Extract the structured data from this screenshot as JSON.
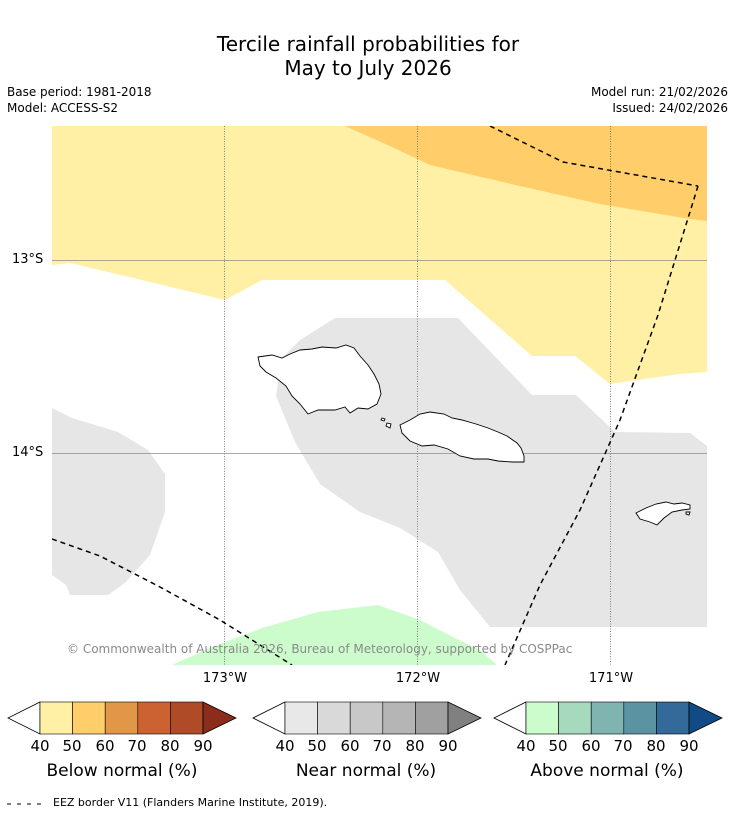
{
  "title": {
    "line1": "Tercile rainfall probabilities for",
    "line2": "May to July 2026"
  },
  "meta": {
    "base_period": "Base period: 1981-2018",
    "model": "Model: ACCESS-S2",
    "model_run": "Model run: 21/02/2026",
    "issued": "Issued: 24/02/2026"
  },
  "map": {
    "copyright": "© Commonwealth of Australia 2026, Bureau of Meteorology, supported by COSPPac",
    "longitude_labels": [
      "173°W",
      "172°W",
      "171°W"
    ],
    "latitude_labels": [
      "13°S",
      "14°S"
    ]
  },
  "colorbars": {
    "below": {
      "title": "Below normal (%)",
      "colors": [
        "#fff0a6",
        "#ffcd6a",
        "#e29648",
        "#cc6131",
        "#b04b28",
        "#8b2d1a"
      ],
      "ticks": [
        "40",
        "50",
        "60",
        "70",
        "80",
        "90"
      ]
    },
    "near": {
      "title": "Near normal (%)",
      "colors": [
        "#e8e8e8",
        "#d9d9d9",
        "#c8c8c8",
        "#b5b5b5",
        "#a0a0a0",
        "#808080"
      ],
      "ticks": [
        "40",
        "50",
        "60",
        "70",
        "80",
        "90"
      ]
    },
    "above": {
      "title": "Above normal (%)",
      "colors": [
        "#ccfccc",
        "#a6d9bd",
        "#80b4b1",
        "#5b93a3",
        "#346a99",
        "#114b86"
      ],
      "ticks": [
        "40",
        "50",
        "60",
        "70",
        "80",
        "90"
      ]
    }
  },
  "legend": {
    "eez": "EEZ border V11 (Flanders Marine Institute, 2019)."
  }
}
